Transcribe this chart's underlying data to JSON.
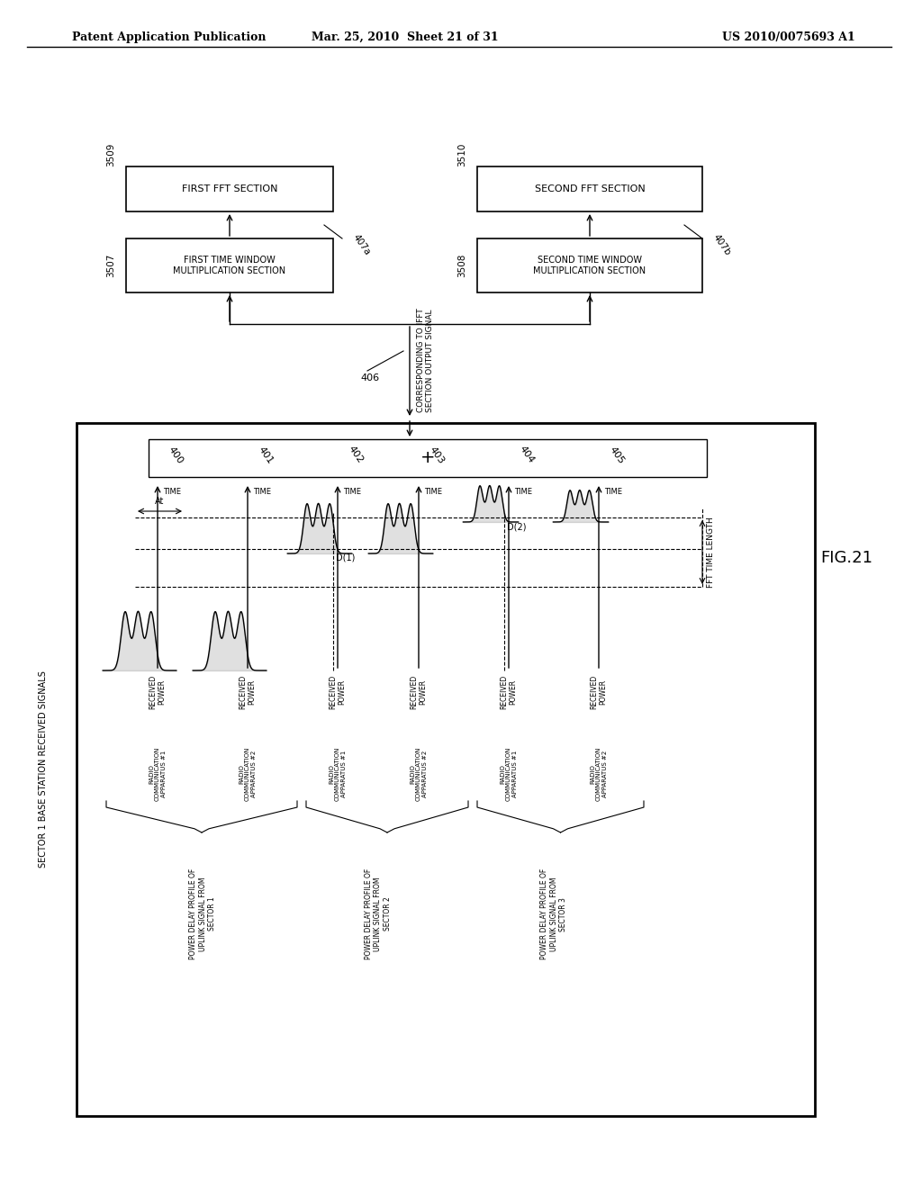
{
  "title_left": "Patent Application Publication",
  "title_mid": "Mar. 25, 2010  Sheet 21 of 31",
  "title_right": "US 2010/0075693 A1",
  "fig_label": "FIG.21",
  "header_text": "SECTOR 1 BASE STATION RECEIVED SIGNALS",
  "box1_label": "FIRST FFT SECTION",
  "box2_label": "SECOND FFT SECTION",
  "box3_label": "FIRST TIME WINDOW\nMULTIPLICATION SECTION",
  "box4_label": "SECOND TIME WINDOW\nMULTIPLICATION SECTION",
  "sum_box_label": "+",
  "ref_3509": "3509",
  "ref_3510": "3510",
  "ref_3507": "3507",
  "ref_3508": "3508",
  "ref_407a": "407a",
  "ref_407b": "407b",
  "ref_406": "406",
  "corr_label": "CORRESPONDING TO IFFT\nSECTION OUTPUT SIGNAL",
  "ref_400": "400",
  "ref_401": "401",
  "ref_402": "402",
  "ref_403": "403",
  "ref_404": "404",
  "ref_405": "405",
  "time_labels": [
    "TIME",
    "TIME",
    "TIME",
    "TIME",
    "TIME",
    "TIME"
  ],
  "received_power_labels": [
    "RECEIVED\nPOWER",
    "RECEIVED\nPOWER",
    "RECEIVED\nPOWER",
    "RECEIVED\nPOWER",
    "RECEIVED\nPOWER",
    "RECEIVED\nPOWER"
  ],
  "apparatus_labels": [
    "RADIO\nCOMMUNICATION\nAPPARATUS #1",
    "RADIO\nCOMMUNICATION\nAPPARATUS #2",
    "RADIO\nCOMMUNICATION\nAPPARATUS #1",
    "RADIO\nCOMMUNICATION\nAPPARATUS #2",
    "RADIO\nCOMMUNICATION\nAPPARATUS #1",
    "RADIO\nCOMMUNICATION\nAPPARATUS #2"
  ],
  "sector_labels": [
    "POWER DELAY PROFILE OF\nUPLINK SIGNAL FROM\nSECTOR 1",
    "POWER DELAY PROFILE OF\nUPLINK SIGNAL FROM\nSECTOR 2",
    "POWER DELAY PROFILE OF\nUPLINK SIGNAL FROM\nSECTOR 3"
  ],
  "At_label": "At",
  "D1_label": "D(1)",
  "D2_label": "D(2)",
  "FFT_label": "FFT TIME LENGTH",
  "bg_color": "#ffffff",
  "line_color": "#000000"
}
